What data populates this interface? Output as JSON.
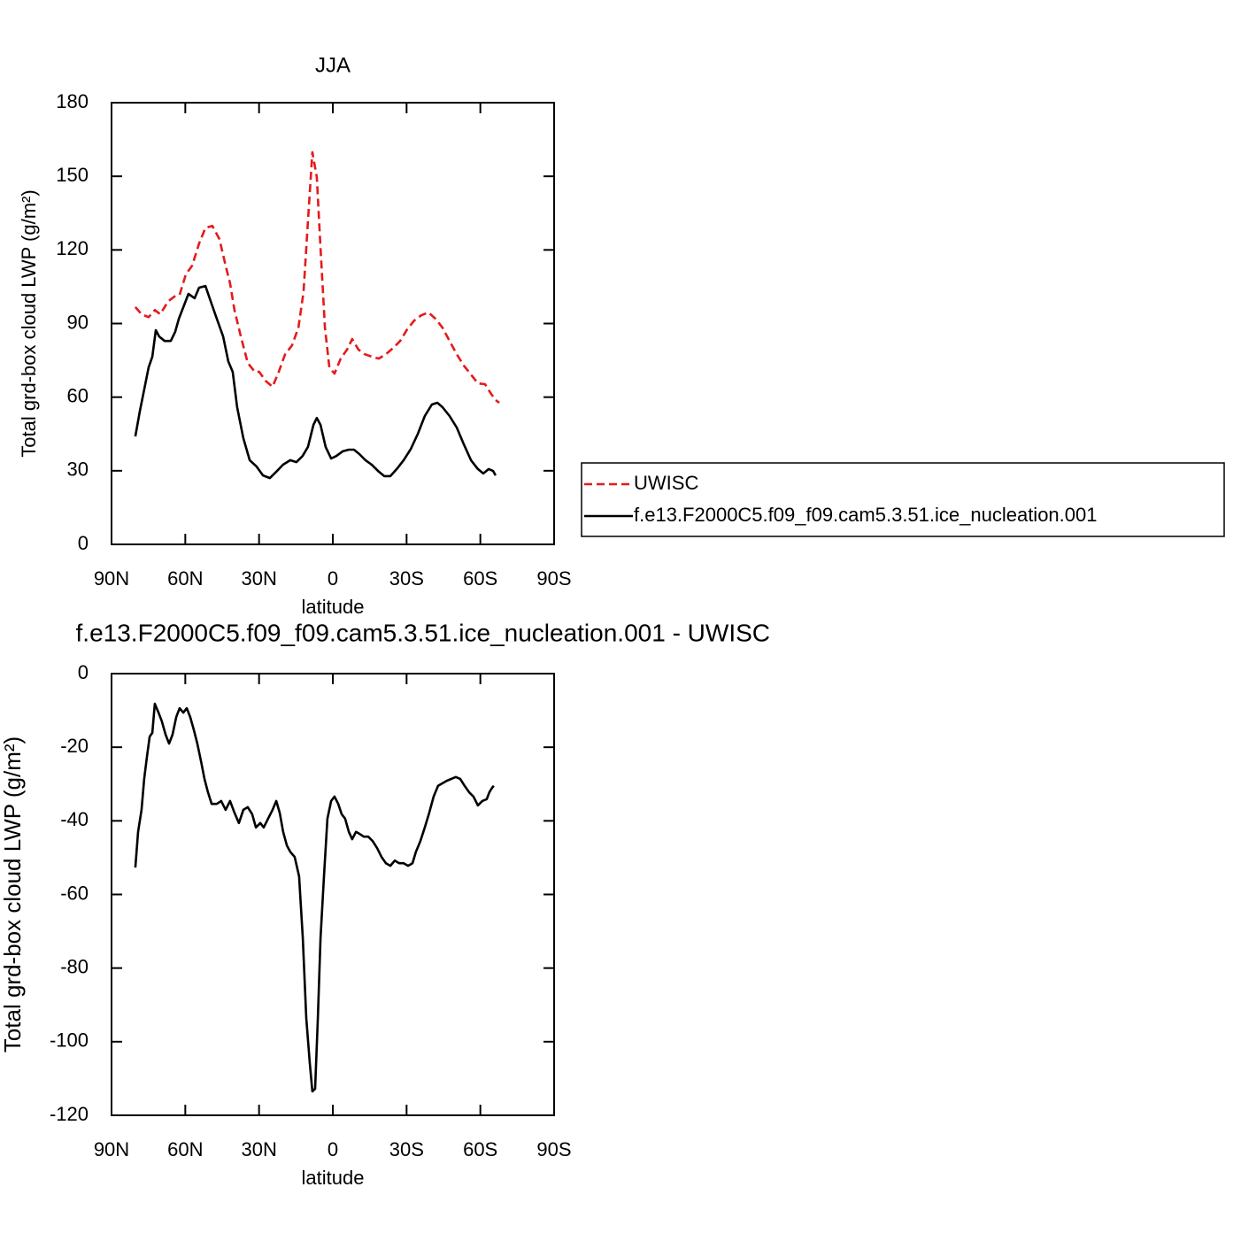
{
  "chart_data": [
    {
      "type": "line",
      "title": "JJA",
      "xlabel": "latitude",
      "ylabel": "Total grd-box cloud LWP (g/m²)",
      "xlim": [
        90,
        -90
      ],
      "xticks": [
        {
          "value": 90,
          "label": "90N"
        },
        {
          "value": 60,
          "label": "60N"
        },
        {
          "value": 30,
          "label": "30N"
        },
        0,
        {
          "value": -30,
          "label": "30S"
        },
        {
          "value": -60,
          "label": "60S"
        },
        {
          "value": -90,
          "label": "90S"
        }
      ],
      "ylim": [
        0,
        180
      ],
      "yticks": [
        0,
        30,
        60,
        90,
        120,
        150,
        180
      ],
      "legend": "right",
      "series": [
        {
          "name": "UWISC",
          "color": "#e41a1c",
          "linestyle": "dashed",
          "x": [
            80.3,
            77.8,
            74.9,
            72.4,
            70.2,
            67,
            64.4,
            62.3,
            59.8,
            57.2,
            54.4,
            51.8,
            49,
            46.1,
            43.6,
            41.8,
            40,
            37.4,
            34.6,
            31.7,
            29.9,
            27.4,
            24.5,
            22,
            19.4,
            16.6,
            14,
            11.9,
            10.1,
            8.3,
            6.5,
            5,
            3.2,
            1.4,
            -0.7,
            -3.2,
            -5.8,
            -7.9,
            -10.4,
            -13,
            -15.8,
            -18.7,
            -21.6,
            -24.5,
            -27.4,
            -30.2,
            -33.1,
            -36,
            -38.9,
            -41.8,
            -44.6,
            -47.5,
            -50.4,
            -53.3,
            -56.2,
            -59,
            -61.9,
            -64.4,
            -66.2,
            -67.7
          ],
          "values": [
            96.7,
            93.8,
            92.6,
            95.5,
            93.8,
            99,
            101,
            101.7,
            110,
            113.6,
            122.6,
            129,
            129.8,
            124.4,
            113.6,
            106.4,
            95.5,
            84.7,
            73.9,
            70.3,
            70.3,
            66.7,
            64.2,
            70.3,
            77.5,
            81.1,
            88.3,
            102.8,
            131.7,
            159.8,
            149.7,
            120.8,
            88.3,
            72.1,
            69.6,
            75.7,
            79.4,
            83.7,
            79.4,
            77.5,
            76.5,
            75.7,
            77.5,
            80,
            82.9,
            87.6,
            91.2,
            93.4,
            94.5,
            91.9,
            88.3,
            82.9,
            77.5,
            72.8,
            69.2,
            65.6,
            65.3,
            61.3,
            58.8,
            57.7
          ]
        },
        {
          "name": "f.e13.F2000C5.f09_f09.cam5.3.51.ice_nucleation.001",
          "color": "#000000",
          "linestyle": "solid",
          "x": [
            80.3,
            78.5,
            76.7,
            74.9,
            73.4,
            72,
            70.6,
            68.4,
            65.9,
            64.1,
            62.6,
            60.5,
            58.7,
            56.2,
            54.4,
            51.8,
            49.7,
            47.2,
            44.6,
            42.5,
            40.7,
            38.9,
            36.4,
            33.8,
            31,
            28.4,
            25.6,
            23,
            20.2,
            17.3,
            14.8,
            12.3,
            10.1,
            7.9,
            6.5,
            5,
            2.9,
            0.7,
            -1.4,
            -4,
            -6.5,
            -8.6,
            -10.8,
            -13.3,
            -15.8,
            -18.4,
            -20.9,
            -23.4,
            -26,
            -28.8,
            -31.7,
            -34.6,
            -37.4,
            -40.3,
            -42.5,
            -44.6,
            -47.5,
            -50.4,
            -53.3,
            -56.2,
            -59,
            -61.2,
            -63.4,
            -65.2,
            -66.2
          ],
          "values": [
            44,
            54.1,
            63.1,
            72.1,
            76.5,
            87.3,
            84.7,
            82.9,
            82.9,
            86.6,
            92,
            97.4,
            102.1,
            100.3,
            104.6,
            105.3,
            99.2,
            92,
            84.7,
            74.6,
            70.3,
            55.9,
            43.3,
            34.3,
            31.7,
            28.1,
            27,
            29.6,
            32.5,
            34.3,
            33.5,
            36,
            39.7,
            48.7,
            51.5,
            48.7,
            39.7,
            35,
            36,
            37.9,
            38.6,
            38.6,
            36.8,
            34.3,
            32.5,
            29.9,
            27.8,
            27.8,
            30.7,
            34.3,
            38.9,
            45.1,
            52.3,
            57,
            57.7,
            55.9,
            52.3,
            47.6,
            40.7,
            34.3,
            30.7,
            28.9,
            30.7,
            29.9,
            28.1
          ]
        }
      ]
    },
    {
      "type": "line",
      "title": "f.e13.F2000C5.f09_f09.cam5.3.51.ice_nucleation.001 - UWISC",
      "xlabel": "latitude",
      "ylabel": "Total grd-box cloud LWP (g/m²)",
      "xlim": [
        90,
        -90
      ],
      "xticks": [
        {
          "value": 90,
          "label": "90N"
        },
        {
          "value": 60,
          "label": "60N"
        },
        {
          "value": 30,
          "label": "30N"
        },
        0,
        {
          "value": -30,
          "label": "30S"
        },
        {
          "value": -60,
          "label": "60S"
        },
        {
          "value": -90,
          "label": "90S"
        }
      ],
      "ylim": [
        -120,
        0
      ],
      "yticks": [
        -120,
        -100,
        -80,
        -60,
        -40,
        -20,
        0
      ],
      "color": "#000000",
      "x": [
        80.3,
        79.2,
        77.8,
        76.7,
        75.6,
        74.5,
        73.4,
        72.4,
        70.9,
        69.5,
        68,
        66.6,
        65.2,
        63.7,
        62.3,
        60.8,
        59.4,
        58,
        56.5,
        55.1,
        53.6,
        52.2,
        50.8,
        49.3,
        47.2,
        45.4,
        43.6,
        41.8,
        40,
        38.2,
        36.4,
        34.6,
        32.8,
        31.3,
        29.5,
        28.1,
        26.3,
        24.5,
        23,
        21.6,
        20.2,
        18.7,
        17.3,
        15.5,
        13.7,
        12.2,
        10.8,
        9.4,
        8.3,
        7.2,
        6.1,
        5,
        3.6,
        2.2,
        0.7,
        -0.7,
        -2.2,
        -3.6,
        -5,
        -6.5,
        -7.9,
        -9.4,
        -10.8,
        -12.6,
        -14.4,
        -16.2,
        -18,
        -19.8,
        -21.6,
        -23.4,
        -25.2,
        -27,
        -28.8,
        -30.6,
        -32.4,
        -33.8,
        -35.6,
        -37.4,
        -39.2,
        -41,
        -42.8,
        -44.6,
        -46.4,
        -48.2,
        -50,
        -51.8,
        -53.6,
        -55.4,
        -57.2,
        -59,
        -60.8,
        -62.6,
        -63.7,
        -64.8,
        -65.5
      ],
      "values": [
        -52.7,
        -43,
        -37,
        -28.6,
        -22.6,
        -17.1,
        -16.1,
        -8.2,
        -10.6,
        -13,
        -16.6,
        -19,
        -16.6,
        -11.8,
        -9.4,
        -10.6,
        -9.4,
        -11.8,
        -15.4,
        -19,
        -23.8,
        -28.6,
        -32.2,
        -35.4,
        -35.4,
        -34.6,
        -37,
        -34.6,
        -37.8,
        -40.6,
        -37,
        -36.3,
        -38.2,
        -41.8,
        -40.6,
        -41.8,
        -39.4,
        -37,
        -34.6,
        -37.8,
        -43,
        -46.7,
        -48.4,
        -49.8,
        -55.1,
        -71.9,
        -93.6,
        -105.6,
        -113.5,
        -112.8,
        -93.6,
        -71.9,
        -55.1,
        -39.4,
        -34.6,
        -33.4,
        -35.4,
        -38.2,
        -39.4,
        -43,
        -45,
        -43,
        -43.5,
        -44.3,
        -44.3,
        -45.5,
        -47.4,
        -49.8,
        -51.5,
        -52.2,
        -50.8,
        -51.5,
        -51.5,
        -52.2,
        -51.5,
        -48.4,
        -45.5,
        -41.8,
        -37.8,
        -33.4,
        -30.5,
        -29.8,
        -29.1,
        -28.6,
        -28.1,
        -28.6,
        -30.5,
        -32.2,
        -33.4,
        -35.8,
        -34.6,
        -34.1,
        -32.2,
        -31,
        -30.5
      ]
    }
  ]
}
